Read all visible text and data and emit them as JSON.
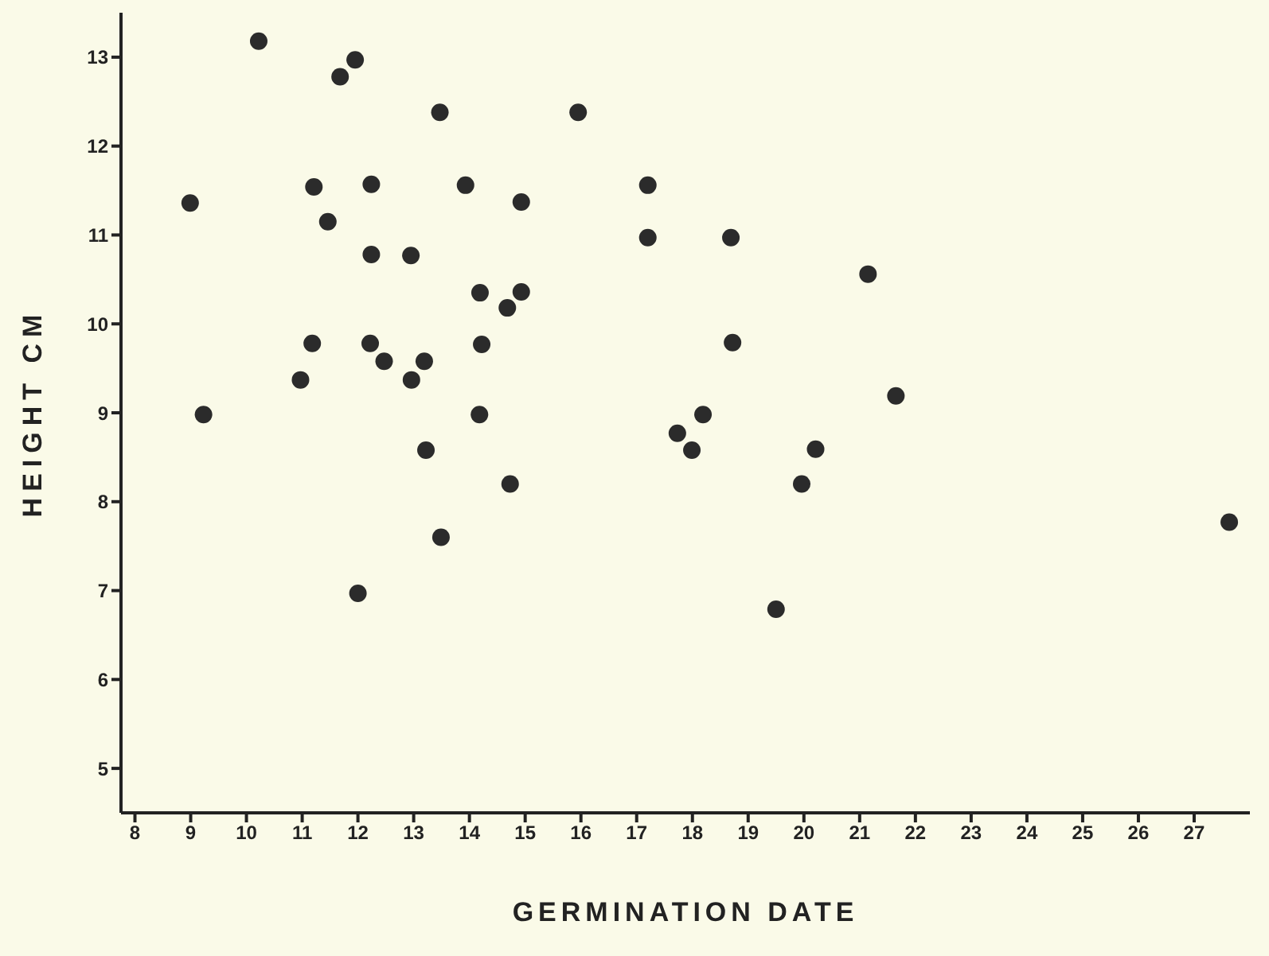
{
  "chart_data": {
    "type": "scatter",
    "xlabel": "GERMINATION DATE",
    "ylabel": "HEIGHT CM",
    "xlim": [
      7.75,
      28
    ],
    "xticks": [
      8,
      9,
      10,
      11,
      12,
      13,
      14,
      15,
      16,
      17,
      18,
      19,
      20,
      21,
      22,
      23,
      24,
      25,
      26,
      27
    ],
    "ylim": [
      4.5,
      13.5
    ],
    "yticks": [
      5,
      6,
      7,
      8,
      9,
      10,
      11,
      12,
      13
    ],
    "grid": false,
    "legend": false,
    "marker": "circle",
    "series": [
      {
        "color": "#2b2b2b",
        "x": [
          8.99,
          11.21,
          12.24,
          13.93,
          14.93,
          11.46,
          12.24,
          12.95,
          14.19,
          14.93,
          14.68,
          11.18,
          12.22,
          14.22,
          12.47,
          13.19,
          10.97,
          12.96,
          9.23,
          14.18,
          13.22,
          14.73,
          13.49,
          12.0,
          10.22,
          11.68,
          11.95,
          13.47,
          15.95,
          17.2,
          17.2,
          18.69,
          21.15,
          18.72,
          21.65,
          18.19,
          17.73,
          17.99,
          20.21,
          19.96,
          19.5,
          27.63
        ],
        "values": [
          11.36,
          11.54,
          11.57,
          11.56,
          11.37,
          11.15,
          10.78,
          10.77,
          10.35,
          10.36,
          10.18,
          9.78,
          9.78,
          9.77,
          9.58,
          9.58,
          9.37,
          9.37,
          8.98,
          8.98,
          8.58,
          8.2,
          7.6,
          6.97,
          13.18,
          12.78,
          12.97,
          12.38,
          12.38,
          11.56,
          10.97,
          10.97,
          10.56,
          9.79,
          9.19,
          8.98,
          8.77,
          8.58,
          8.59,
          8.2,
          6.79,
          7.77
        ]
      }
    ]
  }
}
